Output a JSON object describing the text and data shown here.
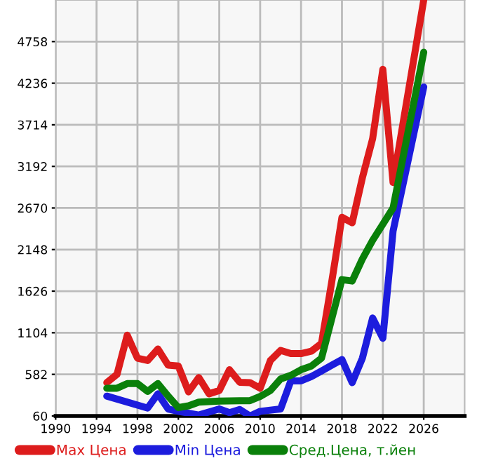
{
  "chart_data": {
    "type": "line",
    "xlim": [
      1990,
      2030
    ],
    "xticks": [
      1990,
      1994,
      1998,
      2002,
      2006,
      2010,
      2014,
      2018,
      2022,
      2026
    ],
    "ylim": [
      60,
      5280
    ],
    "yticks": [
      60,
      582,
      1104,
      1626,
      2148,
      2670,
      3192,
      3714,
      4236,
      4758
    ],
    "grid": true,
    "legend": "bottom",
    "marker": "none",
    "line_style": "solid",
    "series": [
      {
        "name": "Max Цена",
        "color": "#dd1c1c",
        "x": [
          1995,
          1996,
          1997,
          1998,
          1999,
          2000,
          2001,
          2002,
          2003,
          2004,
          2005,
          2006,
          2007,
          2008,
          2009,
          2010,
          2011,
          2012,
          2013,
          2014,
          2015,
          2016,
          2017,
          2018,
          2019,
          2020,
          2021,
          2022,
          2023,
          2026
        ],
        "values": [
          478,
          582,
          1074,
          785,
          756,
          900,
          698,
          686,
          362,
          542,
          338,
          379,
          640,
          483,
          478,
          408,
          756,
          883,
          843,
          843,
          872,
          970,
          1742,
          2553,
          2484,
          3050,
          3540,
          4410,
          2989,
          5280
        ]
      },
      {
        "name": "Min Цена",
        "color": "#1c1cdd",
        "x": [
          1995,
          1999,
          2000,
          2001,
          2002,
          2004,
          2006,
          2007,
          2008,
          2009,
          2010,
          2012,
          2013,
          2014,
          2015,
          2016,
          2017,
          2018,
          2019,
          2020,
          2021,
          2022,
          2023,
          2026
        ],
        "values": [
          309,
          159,
          338,
          147,
          118,
          72,
          147,
          101,
          141,
          60,
          118,
          147,
          500,
          500,
          553,
          625,
          697,
          768,
          478,
          785,
          1290,
          1034,
          2379,
          4189
        ]
      },
      {
        "name": "Сред.Цена, т.йен",
        "color": "#0a800a",
        "x": [
          1995,
          1996,
          1997,
          1998,
          1999,
          2000,
          2001,
          2002,
          2003,
          2004,
          2006,
          2008,
          2009,
          2010,
          2011,
          2012,
          2013,
          2014,
          2015,
          2016,
          2017,
          2018,
          2019,
          2020,
          2021,
          2022,
          2023,
          2026
        ],
        "values": [
          408,
          408,
          466,
          466,
          368,
          466,
          309,
          164,
          187,
          234,
          246,
          252,
          252,
          304,
          379,
          524,
          570,
          640,
          686,
          785,
          1278,
          1771,
          1753,
          2031,
          2264,
          2466,
          2670,
          4624
        ]
      }
    ]
  }
}
